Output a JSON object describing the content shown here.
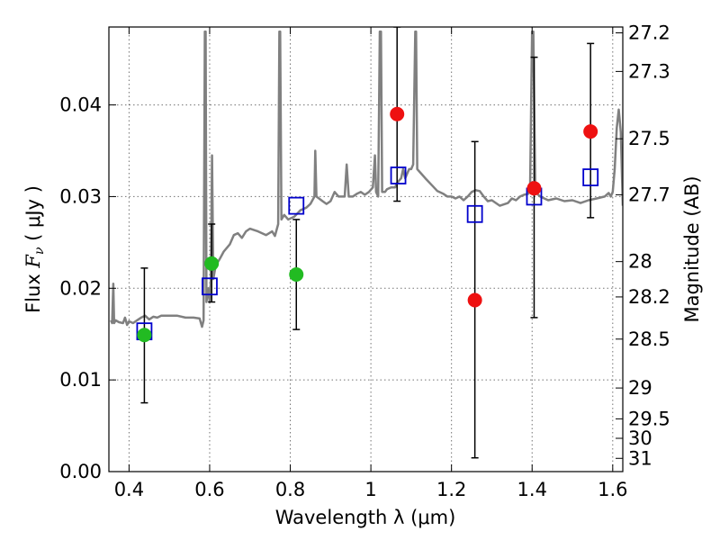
{
  "chart_data": {
    "type": "scatter",
    "title": "",
    "xlabel": "Wavelength  λ (μm)",
    "ylabel": "Flux  F_ν  ( μJy )",
    "ylabel_parts": {
      "prefix": "Flux  ",
      "symbol": "F",
      "subscript": "ν",
      "suffix": "  ( μJy )"
    },
    "y2label": "Magnitude (AB)",
    "xlim": [
      0.35,
      1.625
    ],
    "ylim": [
      0.0,
      0.0485
    ],
    "grid": true,
    "xticks": [
      {
        "value": 0.4,
        "label": "0.4"
      },
      {
        "value": 0.6,
        "label": "0.6"
      },
      {
        "value": 0.8,
        "label": "0.8"
      },
      {
        "value": 1.0,
        "label": "1"
      },
      {
        "value": 1.2,
        "label": "1.2"
      },
      {
        "value": 1.4,
        "label": "1.4"
      },
      {
        "value": 1.6,
        "label": "1.6"
      }
    ],
    "yticks": [
      {
        "value": 0.0,
        "label": "0.00"
      },
      {
        "value": 0.01,
        "label": "0.01"
      },
      {
        "value": 0.02,
        "label": "0.02"
      },
      {
        "value": 0.03,
        "label": "0.03"
      },
      {
        "value": 0.04,
        "label": "0.04"
      }
    ],
    "y2ticks": [
      {
        "value": 27.2,
        "label": "27.2"
      },
      {
        "value": 27.3,
        "label": "27.3"
      },
      {
        "value": 27.5,
        "label": "27.5"
      },
      {
        "value": 27.7,
        "label": "27.7"
      },
      {
        "value": 28.0,
        "label": "28"
      },
      {
        "value": 28.2,
        "label": "28.2"
      },
      {
        "value": 28.5,
        "label": "28.5"
      },
      {
        "value": 29.0,
        "label": "29"
      },
      {
        "value": 29.5,
        "label": "29.5"
      },
      {
        "value": 30.0,
        "label": "30"
      },
      {
        "value": 31.0,
        "label": "31"
      }
    ],
    "series": [
      {
        "kind": "line",
        "color": "#808080",
        "points": [
          [
            0.355,
            0.0165
          ],
          [
            0.358,
            0.0162
          ],
          [
            0.361,
            0.0205
          ],
          [
            0.363,
            0.0162
          ],
          [
            0.367,
            0.0165
          ],
          [
            0.375,
            0.0163
          ],
          [
            0.385,
            0.0162
          ],
          [
            0.39,
            0.0168
          ],
          [
            0.395,
            0.016
          ],
          [
            0.4,
            0.0164
          ],
          [
            0.41,
            0.0162
          ],
          [
            0.42,
            0.0165
          ],
          [
            0.43,
            0.0168
          ],
          [
            0.44,
            0.017
          ],
          [
            0.45,
            0.0166
          ],
          [
            0.46,
            0.0169
          ],
          [
            0.47,
            0.0168
          ],
          [
            0.48,
            0.017
          ],
          [
            0.5,
            0.017
          ],
          [
            0.52,
            0.017
          ],
          [
            0.54,
            0.0168
          ],
          [
            0.56,
            0.0168
          ],
          [
            0.575,
            0.0167
          ],
          [
            0.581,
            0.0158
          ],
          [
            0.585,
            0.0165
          ],
          [
            0.588,
            0.048
          ],
          [
            0.59,
            0.048
          ],
          [
            0.592,
            0.0185
          ],
          [
            0.597,
            0.02
          ],
          [
            0.6,
            0.0185
          ],
          [
            0.603,
            0.021
          ],
          [
            0.606,
            0.0345
          ],
          [
            0.609,
            0.021
          ],
          [
            0.615,
            0.0225
          ],
          [
            0.625,
            0.0232
          ],
          [
            0.635,
            0.024
          ],
          [
            0.65,
            0.0248
          ],
          [
            0.66,
            0.0258
          ],
          [
            0.67,
            0.026
          ],
          [
            0.68,
            0.0255
          ],
          [
            0.69,
            0.0262
          ],
          [
            0.7,
            0.0265
          ],
          [
            0.72,
            0.0262
          ],
          [
            0.74,
            0.0258
          ],
          [
            0.755,
            0.0262
          ],
          [
            0.762,
            0.0257
          ],
          [
            0.77,
            0.027
          ],
          [
            0.773,
            0.048
          ],
          [
            0.775,
            0.048
          ],
          [
            0.778,
            0.0275
          ],
          [
            0.785,
            0.028
          ],
          [
            0.795,
            0.0275
          ],
          [
            0.81,
            0.0278
          ],
          [
            0.825,
            0.0285
          ],
          [
            0.84,
            0.0288
          ],
          [
            0.85,
            0.0292
          ],
          [
            0.86,
            0.03
          ],
          [
            0.862,
            0.035
          ],
          [
            0.865,
            0.03
          ],
          [
            0.88,
            0.0295
          ],
          [
            0.89,
            0.0292
          ],
          [
            0.9,
            0.0295
          ],
          [
            0.91,
            0.0305
          ],
          [
            0.92,
            0.03
          ],
          [
            0.935,
            0.03
          ],
          [
            0.94,
            0.0335
          ],
          [
            0.945,
            0.03
          ],
          [
            0.955,
            0.03
          ],
          [
            0.965,
            0.0303
          ],
          [
            0.975,
            0.0305
          ],
          [
            0.985,
            0.0302
          ],
          [
            0.995,
            0.0305
          ],
          [
            1.005,
            0.031
          ],
          [
            1.01,
            0.0345
          ],
          [
            1.013,
            0.0305
          ],
          [
            1.018,
            0.03
          ],
          [
            1.022,
            0.048
          ],
          [
            1.025,
            0.048
          ],
          [
            1.028,
            0.0305
          ],
          [
            1.035,
            0.0305
          ],
          [
            1.04,
            0.0308
          ],
          [
            1.05,
            0.031
          ],
          [
            1.055,
            0.031
          ],
          [
            1.06,
            0.031
          ],
          [
            1.065,
            0.0315
          ],
          [
            1.075,
            0.032
          ],
          [
            1.08,
            0.033
          ],
          [
            1.085,
            0.032
          ],
          [
            1.09,
            0.0325
          ],
          [
            1.095,
            0.033
          ],
          [
            1.1,
            0.033
          ],
          [
            1.105,
            0.0335
          ],
          [
            1.11,
            0.048
          ],
          [
            1.112,
            0.048
          ],
          [
            1.115,
            0.033
          ],
          [
            1.125,
            0.0325
          ],
          [
            1.135,
            0.032
          ],
          [
            1.15,
            0.0313
          ],
          [
            1.165,
            0.0306
          ],
          [
            1.18,
            0.0303
          ],
          [
            1.19,
            0.03
          ],
          [
            1.2,
            0.03
          ],
          [
            1.21,
            0.0298
          ],
          [
            1.22,
            0.03
          ],
          [
            1.23,
            0.0296
          ],
          [
            1.24,
            0.03
          ],
          [
            1.25,
            0.0305
          ],
          [
            1.26,
            0.0307
          ],
          [
            1.27,
            0.0306
          ],
          [
            1.28,
            0.03
          ],
          [
            1.29,
            0.0295
          ],
          [
            1.3,
            0.0296
          ],
          [
            1.32,
            0.029
          ],
          [
            1.34,
            0.0293
          ],
          [
            1.35,
            0.0298
          ],
          [
            1.36,
            0.0296
          ],
          [
            1.37,
            0.03
          ],
          [
            1.38,
            0.0302
          ],
          [
            1.39,
            0.0303
          ],
          [
            1.395,
            0.031
          ],
          [
            1.4,
            0.048
          ],
          [
            1.403,
            0.048
          ],
          [
            1.408,
            0.0305
          ],
          [
            1.42,
            0.03
          ],
          [
            1.44,
            0.0296
          ],
          [
            1.46,
            0.0298
          ],
          [
            1.48,
            0.0295
          ],
          [
            1.5,
            0.0296
          ],
          [
            1.52,
            0.0293
          ],
          [
            1.54,
            0.0296
          ],
          [
            1.56,
            0.0298
          ],
          [
            1.58,
            0.03
          ],
          [
            1.59,
            0.0304
          ],
          [
            1.595,
            0.03
          ],
          [
            1.6,
            0.0305
          ],
          [
            1.605,
            0.033
          ],
          [
            1.61,
            0.0375
          ],
          [
            1.615,
            0.0395
          ],
          [
            1.62,
            0.037
          ],
          [
            1.625,
            0.029
          ]
        ]
      },
      {
        "kind": "errorbars",
        "color": "#000000",
        "points": [
          {
            "x": 0.438,
            "lo": 0.0075,
            "hi": 0.0222
          },
          {
            "x": 0.605,
            "lo": 0.0185,
            "hi": 0.027
          },
          {
            "x": 0.815,
            "lo": 0.0155,
            "hi": 0.0275
          },
          {
            "x": 1.065,
            "lo": 0.0295,
            "hi": 0.0485
          },
          {
            "x": 1.258,
            "lo": 0.0015,
            "hi": 0.036
          },
          {
            "x": 1.405,
            "lo": 0.0168,
            "hi": 0.0452
          },
          {
            "x": 1.545,
            "lo": 0.0277,
            "hi": 0.0467
          }
        ]
      },
      {
        "kind": "squares",
        "color": "#0000cc",
        "points": [
          [
            0.438,
            0.0153
          ],
          [
            0.6,
            0.0202
          ],
          [
            0.815,
            0.029
          ],
          [
            1.068,
            0.0323
          ],
          [
            1.258,
            0.0281
          ],
          [
            1.405,
            0.03
          ],
          [
            1.545,
            0.0321
          ]
        ]
      },
      {
        "kind": "circles",
        "color": "#22bb22",
        "points": [
          [
            0.438,
            0.0149
          ],
          [
            0.605,
            0.0227
          ],
          [
            0.815,
            0.0215
          ]
        ]
      },
      {
        "kind": "circles",
        "color": "#ee1111",
        "points": [
          [
            1.065,
            0.039
          ],
          [
            1.258,
            0.0187
          ],
          [
            1.405,
            0.0309
          ],
          [
            1.545,
            0.0371
          ]
        ]
      }
    ]
  }
}
